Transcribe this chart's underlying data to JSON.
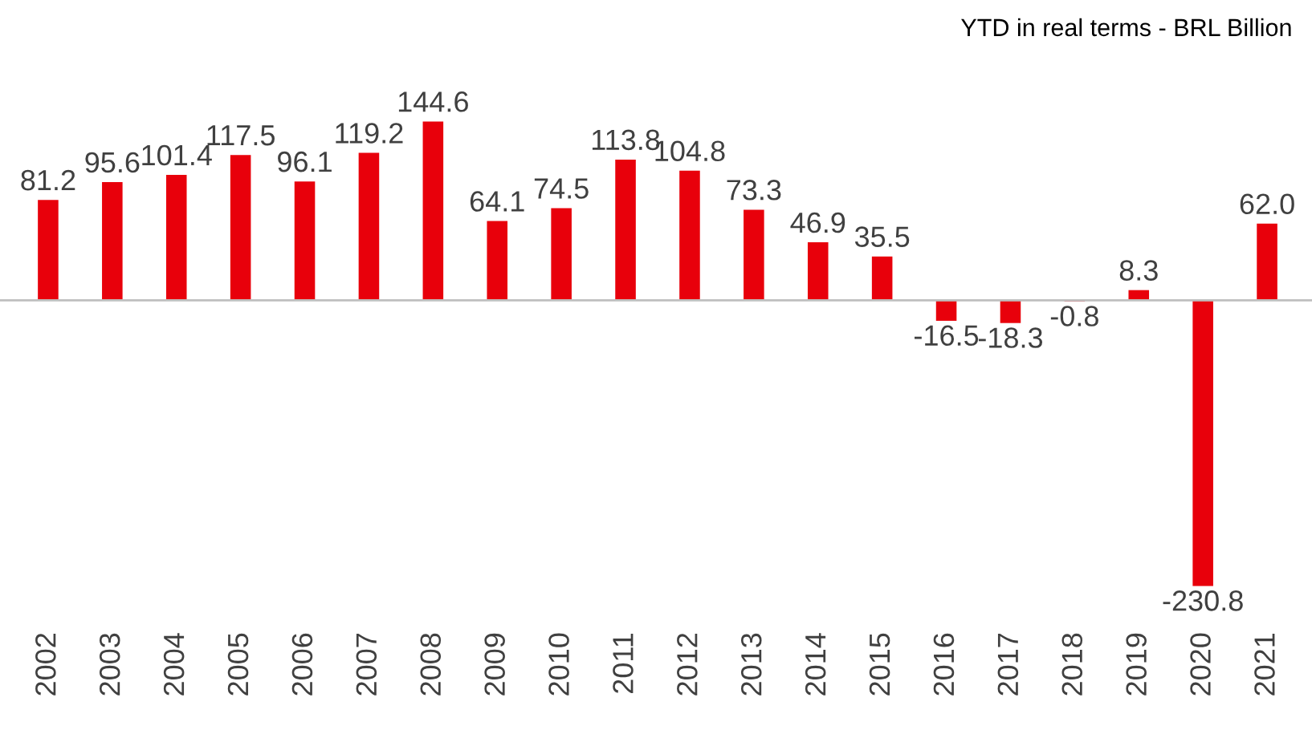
{
  "chart_data": {
    "type": "bar",
    "title": "YTD in real terms - BRL Billion",
    "categories": [
      "2002",
      "2003",
      "2004",
      "2005",
      "2006",
      "2007",
      "2008",
      "2009",
      "2010",
      "2011",
      "2012",
      "2013",
      "2014",
      "2015",
      "2016",
      "2017",
      "2018",
      "2019",
      "2020",
      "2021"
    ],
    "values": [
      81.2,
      95.6,
      101.4,
      117.5,
      96.1,
      119.2,
      144.6,
      64.1,
      74.5,
      113.8,
      104.8,
      73.3,
      46.9,
      35.5,
      -16.5,
      -18.3,
      -0.8,
      8.3,
      -230.8,
      62.0
    ],
    "value_labels": [
      "81.2",
      "95.6",
      "101.4",
      "117.5",
      "96.1",
      "119.2",
      "144.6",
      "64.1",
      "74.5",
      "113.8",
      "104.8",
      "73.3",
      "46.9",
      "35.5",
      "-16.5",
      "-18.3",
      "-0.8",
      "8.3",
      "-230.8",
      "62.0"
    ],
    "color": "#e8000b",
    "grid": false,
    "legend": false,
    "tick_labels": "x"
  }
}
